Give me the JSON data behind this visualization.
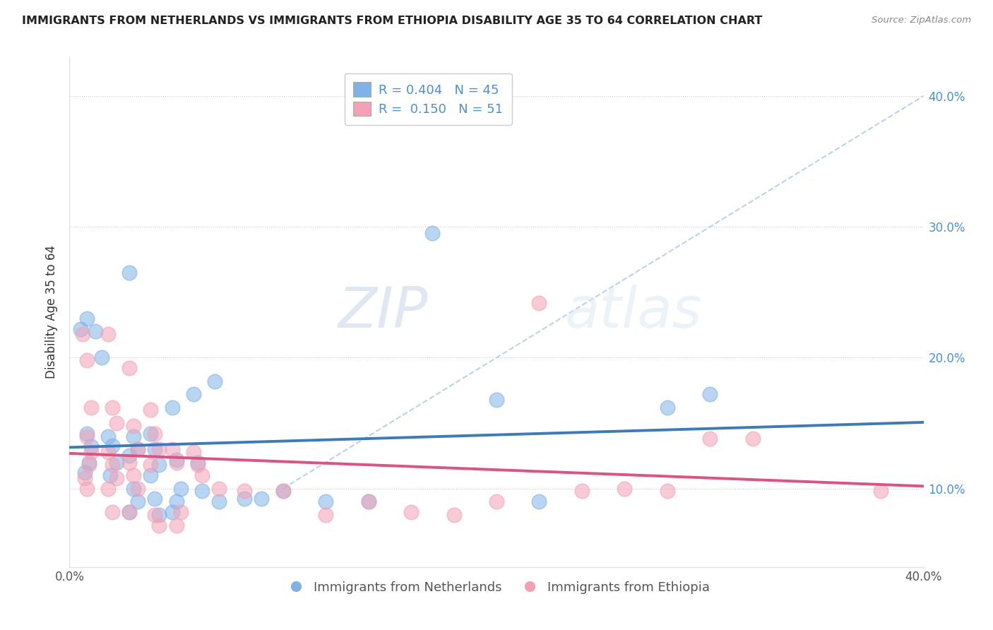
{
  "title": "IMMIGRANTS FROM NETHERLANDS VS IMMIGRANTS FROM ETHIOPIA DISABILITY AGE 35 TO 64 CORRELATION CHART",
  "source": "Source: ZipAtlas.com",
  "ylabel": "Disability Age 35 to 64",
  "xlim": [
    0.0,
    0.4
  ],
  "ylim": [
    0.04,
    0.43
  ],
  "y_ticks": [
    0.1,
    0.2,
    0.3,
    0.4
  ],
  "y_tick_labels": [
    "10.0%",
    "20.0%",
    "30.0%",
    "40.0%"
  ],
  "x_ticks": [
    0.0,
    0.1,
    0.2,
    0.3,
    0.4
  ],
  "x_tick_labels": [
    "0.0%",
    "",
    "",
    "",
    "40.0%"
  ],
  "netherlands_color": "#7fb3e8",
  "ethiopia_color": "#f4a0b5",
  "netherlands_line_color": "#3a7abf",
  "ethiopia_line_color": "#e05080",
  "netherlands_R": 0.404,
  "netherlands_N": 45,
  "ethiopia_R": 0.15,
  "ethiopia_N": 51,
  "legend_label_netherlands": "Immigrants from Netherlands",
  "legend_label_ethiopia": "Immigrants from Ethiopia",
  "watermark_zip": "ZIP",
  "watermark_atlas": "atlas",
  "dashed_line_color": "#a8c8e8",
  "netherlands_points": [
    [
      0.005,
      0.222
    ],
    [
      0.008,
      0.23
    ],
    [
      0.012,
      0.22
    ],
    [
      0.015,
      0.2
    ],
    [
      0.008,
      0.142
    ],
    [
      0.01,
      0.132
    ],
    [
      0.009,
      0.12
    ],
    [
      0.007,
      0.112
    ],
    [
      0.018,
      0.14
    ],
    [
      0.02,
      0.133
    ],
    [
      0.022,
      0.12
    ],
    [
      0.019,
      0.11
    ],
    [
      0.028,
      0.265
    ],
    [
      0.03,
      0.14
    ],
    [
      0.032,
      0.13
    ],
    [
      0.028,
      0.125
    ],
    [
      0.03,
      0.1
    ],
    [
      0.032,
      0.09
    ],
    [
      0.028,
      0.082
    ],
    [
      0.038,
      0.142
    ],
    [
      0.04,
      0.13
    ],
    [
      0.042,
      0.118
    ],
    [
      0.038,
      0.11
    ],
    [
      0.04,
      0.092
    ],
    [
      0.042,
      0.08
    ],
    [
      0.048,
      0.162
    ],
    [
      0.05,
      0.122
    ],
    [
      0.052,
      0.1
    ],
    [
      0.05,
      0.09
    ],
    [
      0.048,
      0.082
    ],
    [
      0.058,
      0.172
    ],
    [
      0.06,
      0.12
    ],
    [
      0.062,
      0.098
    ],
    [
      0.068,
      0.182
    ],
    [
      0.07,
      0.09
    ],
    [
      0.082,
      0.092
    ],
    [
      0.09,
      0.092
    ],
    [
      0.1,
      0.098
    ],
    [
      0.12,
      0.09
    ],
    [
      0.14,
      0.09
    ],
    [
      0.17,
      0.295
    ],
    [
      0.2,
      0.168
    ],
    [
      0.22,
      0.09
    ],
    [
      0.28,
      0.162
    ],
    [
      0.3,
      0.172
    ]
  ],
  "ethiopia_points": [
    [
      0.006,
      0.218
    ],
    [
      0.008,
      0.198
    ],
    [
      0.01,
      0.162
    ],
    [
      0.008,
      0.14
    ],
    [
      0.01,
      0.128
    ],
    [
      0.009,
      0.118
    ],
    [
      0.007,
      0.108
    ],
    [
      0.008,
      0.1
    ],
    [
      0.018,
      0.218
    ],
    [
      0.02,
      0.162
    ],
    [
      0.022,
      0.15
    ],
    [
      0.018,
      0.128
    ],
    [
      0.02,
      0.118
    ],
    [
      0.022,
      0.108
    ],
    [
      0.018,
      0.1
    ],
    [
      0.02,
      0.082
    ],
    [
      0.028,
      0.192
    ],
    [
      0.03,
      0.148
    ],
    [
      0.032,
      0.13
    ],
    [
      0.028,
      0.12
    ],
    [
      0.03,
      0.11
    ],
    [
      0.032,
      0.1
    ],
    [
      0.028,
      0.082
    ],
    [
      0.038,
      0.16
    ],
    [
      0.04,
      0.142
    ],
    [
      0.042,
      0.13
    ],
    [
      0.038,
      0.118
    ],
    [
      0.04,
      0.08
    ],
    [
      0.042,
      0.072
    ],
    [
      0.048,
      0.13
    ],
    [
      0.05,
      0.12
    ],
    [
      0.052,
      0.082
    ],
    [
      0.05,
      0.072
    ],
    [
      0.058,
      0.128
    ],
    [
      0.06,
      0.118
    ],
    [
      0.062,
      0.11
    ],
    [
      0.07,
      0.1
    ],
    [
      0.082,
      0.098
    ],
    [
      0.1,
      0.098
    ],
    [
      0.12,
      0.08
    ],
    [
      0.14,
      0.09
    ],
    [
      0.16,
      0.082
    ],
    [
      0.18,
      0.08
    ],
    [
      0.2,
      0.09
    ],
    [
      0.22,
      0.242
    ],
    [
      0.24,
      0.098
    ],
    [
      0.26,
      0.1
    ],
    [
      0.28,
      0.098
    ],
    [
      0.3,
      0.138
    ],
    [
      0.32,
      0.138
    ],
    [
      0.38,
      0.098
    ]
  ]
}
